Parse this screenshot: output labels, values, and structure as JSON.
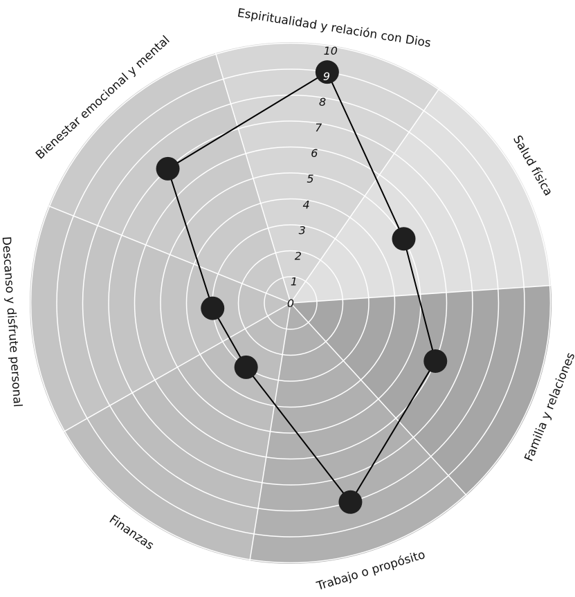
{
  "chart_data": {
    "type": "radar",
    "categories": [
      "Espiritualidad y relación con Dios",
      "Salud física",
      "Familia y relaciones",
      "Trabajo o propósito",
      "Finanzas",
      "Descanso y disfrute personal",
      "Bienestar emocional y mental"
    ],
    "series": [
      {
        "values": [
          9,
          5,
          6,
          8,
          3,
          3,
          7
        ]
      }
    ],
    "radial_ticks": [
      "0",
      "1",
      "2",
      "3",
      "4",
      "5",
      "6",
      "7",
      "8",
      "9",
      "10"
    ],
    "rlim": [
      0,
      10
    ],
    "grid": true,
    "legend": "none",
    "colors": {
      "sectors": [
        "#d6d6d6",
        "#e0e0e0",
        "#a6a6a6",
        "#b0b0b0",
        "#bdbdbd",
        "#c4c4c4",
        "#cacaca"
      ],
      "gridlines": "#ffffff",
      "line": "#000000",
      "marker": "#1f1f1f"
    }
  }
}
